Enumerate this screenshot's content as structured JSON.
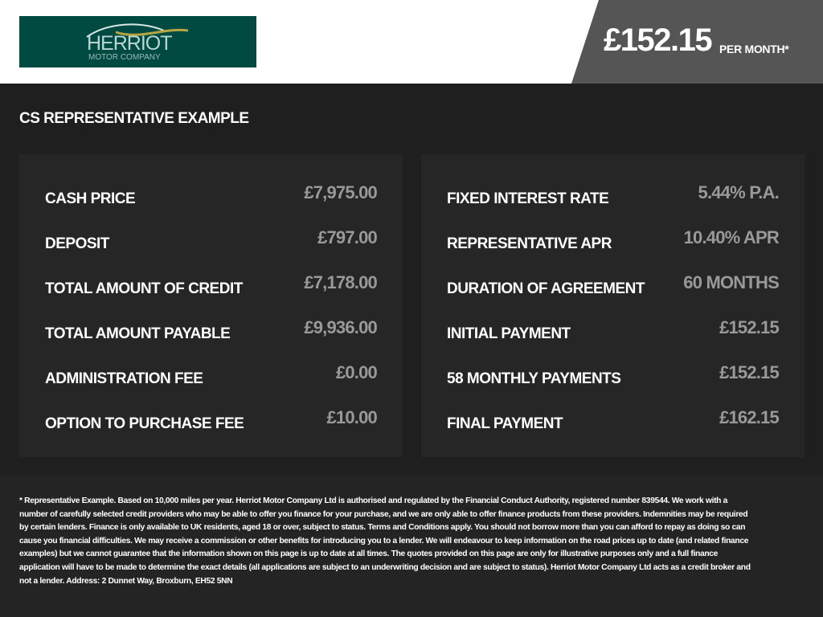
{
  "header": {
    "logo": {
      "name": "HERRIOT",
      "subtitle": "MOTOR COMPANY",
      "colors": {
        "background": "#004a42",
        "swoosh_gold": "#b5a642"
      }
    },
    "price": "£152.15",
    "price_suffix": "PER MONTH*"
  },
  "section_title": "CS REPRESENTATIVE EXAMPLE",
  "left_card": [
    {
      "label": "CASH PRICE",
      "value": "£7,975.00"
    },
    {
      "label": "DEPOSIT",
      "value": "£797.00"
    },
    {
      "label": "TOTAL AMOUNT OF CREDIT",
      "value": "£7,178.00"
    },
    {
      "label": "TOTAL AMOUNT PAYABLE",
      "value": "£9,936.00"
    },
    {
      "label": "ADMINISTRATION FEE",
      "value": "£0.00"
    },
    {
      "label": "OPTION TO PURCHASE FEE",
      "value": "£10.00"
    }
  ],
  "right_card": [
    {
      "label": "FIXED INTEREST RATE",
      "value": "5.44% P.A."
    },
    {
      "label": "REPRESENTATIVE APR",
      "value": "10.40% APR"
    },
    {
      "label": "DURATION OF AGREEMENT",
      "value": "60 MONTHS"
    },
    {
      "label": "INITIAL PAYMENT",
      "value": "£152.15"
    },
    {
      "label": "58 MONTHLY PAYMENTS",
      "value": "£152.15"
    },
    {
      "label": "FINAL PAYMENT",
      "value": "£162.15"
    }
  ],
  "disclaimer": "* Representative Example. Based on 10,000 miles per year. Herriot Motor Company Ltd is authorised and regulated by the Financial Conduct Authority, registered number 839544. We work with a number of carefully selected credit providers who may be able to offer you finance for your purchase, and we are only able to offer finance products from these providers. Indemnities may be required by certain lenders. Finance is only available to UK residents, aged 18 or over, subject to status. Terms and Conditions apply. You should not borrow more than you can afford to repay as doing so can cause you financial difficulties. We may receive a commission or other benefits for introducing you to a lender. We will endeavour to keep information on the road prices up to date (and related finance examples) but we cannot guarantee that the information shown on this page is up to date at all times. The quotes provided on this page are only for illustrative purposes only and a full finance application will have to be made to determine the exact details (all applications are subject to an underwriting decision and are subject to status). Herriot Motor Company Ltd acts as a credit broker and not a lender. Address:  2 Dunnet Way, Broxburn, EH52 5NN"
}
